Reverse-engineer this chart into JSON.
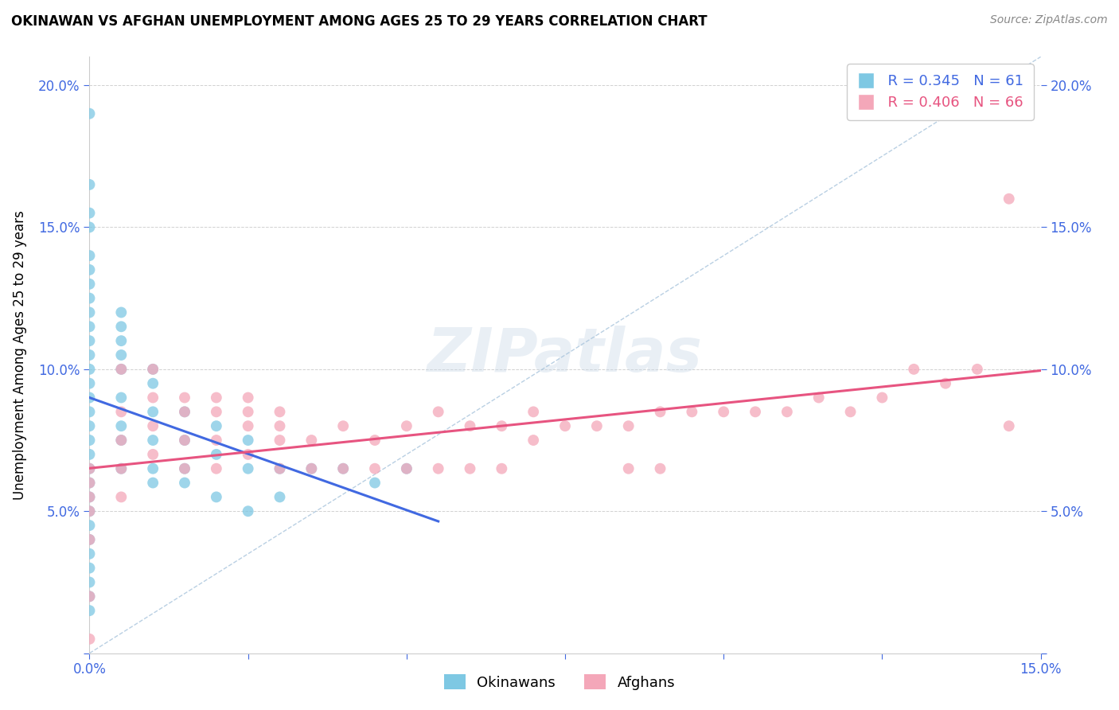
{
  "title": "OKINAWAN VS AFGHAN UNEMPLOYMENT AMONG AGES 25 TO 29 YEARS CORRELATION CHART",
  "source": "Source: ZipAtlas.com",
  "ylabel": "Unemployment Among Ages 25 to 29 years",
  "xlim": [
    0.0,
    0.15
  ],
  "ylim": [
    0.0,
    0.21
  ],
  "okinawan_color": "#7ec8e3",
  "afghan_color": "#f4a7b9",
  "okinawan_line_color": "#4169e1",
  "afghan_line_color": "#e75480",
  "trendline_dash_color": "#a8c4dc",
  "legend_R1": "R = 0.345",
  "legend_N1": "N = 61",
  "legend_R2": "R = 0.406",
  "legend_N2": "N = 66",
  "watermark": "ZIPatlas",
  "okinawan_x": [
    0.0,
    0.0,
    0.0,
    0.0,
    0.0,
    0.0,
    0.0,
    0.0,
    0.0,
    0.0,
    0.0,
    0.0,
    0.0,
    0.0,
    0.0,
    0.0,
    0.0,
    0.0,
    0.0,
    0.0,
    0.0,
    0.0,
    0.0,
    0.0,
    0.0,
    0.0,
    0.0,
    0.0,
    0.0,
    0.0,
    0.005,
    0.005,
    0.005,
    0.005,
    0.005,
    0.005,
    0.005,
    0.005,
    0.005,
    0.01,
    0.01,
    0.01,
    0.01,
    0.01,
    0.01,
    0.015,
    0.015,
    0.015,
    0.015,
    0.02,
    0.02,
    0.02,
    0.025,
    0.025,
    0.025,
    0.03,
    0.03,
    0.035,
    0.04,
    0.045,
    0.05
  ],
  "okinawan_y": [
    0.19,
    0.165,
    0.155,
    0.15,
    0.14,
    0.135,
    0.13,
    0.125,
    0.12,
    0.115,
    0.11,
    0.105,
    0.1,
    0.095,
    0.09,
    0.085,
    0.08,
    0.075,
    0.07,
    0.065,
    0.06,
    0.055,
    0.05,
    0.045,
    0.04,
    0.035,
    0.03,
    0.025,
    0.02,
    0.015,
    0.12,
    0.115,
    0.11,
    0.105,
    0.1,
    0.09,
    0.08,
    0.075,
    0.065,
    0.1,
    0.095,
    0.085,
    0.075,
    0.065,
    0.06,
    0.085,
    0.075,
    0.065,
    0.06,
    0.08,
    0.07,
    0.055,
    0.075,
    0.065,
    0.05,
    0.065,
    0.055,
    0.065,
    0.065,
    0.06,
    0.065
  ],
  "afghan_x": [
    0.0,
    0.0,
    0.0,
    0.0,
    0.0,
    0.0,
    0.0,
    0.005,
    0.005,
    0.005,
    0.005,
    0.005,
    0.01,
    0.01,
    0.01,
    0.01,
    0.015,
    0.015,
    0.015,
    0.015,
    0.02,
    0.02,
    0.02,
    0.02,
    0.025,
    0.025,
    0.025,
    0.025,
    0.03,
    0.03,
    0.03,
    0.03,
    0.035,
    0.035,
    0.04,
    0.04,
    0.045,
    0.045,
    0.05,
    0.05,
    0.055,
    0.055,
    0.06,
    0.06,
    0.065,
    0.065,
    0.07,
    0.07,
    0.075,
    0.08,
    0.085,
    0.085,
    0.09,
    0.09,
    0.095,
    0.1,
    0.105,
    0.11,
    0.115,
    0.12,
    0.125,
    0.13,
    0.135,
    0.14,
    0.145,
    0.145
  ],
  "afghan_y": [
    0.065,
    0.06,
    0.055,
    0.05,
    0.04,
    0.02,
    0.005,
    0.1,
    0.085,
    0.075,
    0.065,
    0.055,
    0.1,
    0.09,
    0.08,
    0.07,
    0.09,
    0.085,
    0.075,
    0.065,
    0.09,
    0.085,
    0.075,
    0.065,
    0.09,
    0.085,
    0.08,
    0.07,
    0.085,
    0.08,
    0.075,
    0.065,
    0.075,
    0.065,
    0.08,
    0.065,
    0.075,
    0.065,
    0.08,
    0.065,
    0.085,
    0.065,
    0.08,
    0.065,
    0.08,
    0.065,
    0.085,
    0.075,
    0.08,
    0.08,
    0.08,
    0.065,
    0.085,
    0.065,
    0.085,
    0.085,
    0.085,
    0.085,
    0.09,
    0.085,
    0.09,
    0.1,
    0.095,
    0.1,
    0.16,
    0.08
  ]
}
